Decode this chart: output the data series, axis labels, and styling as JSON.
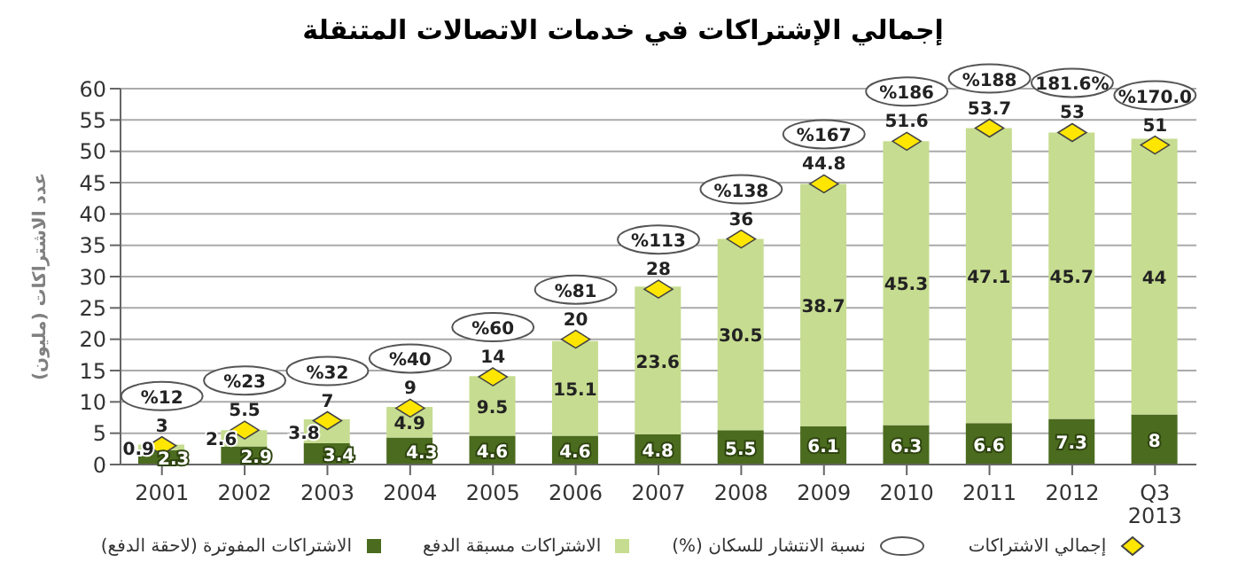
{
  "chart_data": {
    "type": "bar",
    "title": "إجمالي الإشتراكات في خدمات الاتصالات المتنقلة",
    "ylabel": "عدد الاشتراكات (مليون)",
    "categories": [
      "2001",
      "2002",
      "2003",
      "2004",
      "2005",
      "2006",
      "2007",
      "2008",
      "2009",
      "2010",
      "2011",
      "2012",
      "Q3 2013"
    ],
    "stacked": true,
    "data_labels": true,
    "grid": "y",
    "legend": "bottom",
    "ylim": [
      0,
      60
    ],
    "yticks": [
      0,
      5,
      10,
      15,
      20,
      25,
      30,
      35,
      40,
      45,
      50,
      55,
      60
    ],
    "series": [
      {
        "name": "الاشتراكات المفوترة (لاحقة الدفع)",
        "color": "#4b6b1e",
        "values": [
          2.3,
          2.9,
          3.4,
          4.3,
          4.6,
          4.6,
          4.8,
          5.5,
          6.1,
          6.3,
          6.6,
          7.3,
          8
        ]
      },
      {
        "name": "الاشتراكات مسبقة الدفع",
        "color": "#c6dc90",
        "values": [
          0.9,
          2.6,
          3.8,
          4.9,
          9.5,
          15.1,
          23.6,
          30.5,
          38.7,
          45.3,
          47.1,
          45.7,
          44
        ]
      },
      {
        "name": "إجمالي الاشتراكات",
        "type": "scatter",
        "marker": "diamond",
        "color": "#ffe600",
        "values": [
          3,
          5.5,
          7,
          9,
          14,
          20,
          28,
          36,
          44.8,
          51.6,
          53.7,
          53,
          51
        ]
      }
    ],
    "annotations": [
      "نسبة الانتشار للسكان (%)",
      {
        "text": "%12",
        "x": "2001",
        "y": 3
      },
      {
        "text": "%23",
        "x": "2002",
        "y": 5.5
      },
      {
        "text": "%32",
        "x": "2003",
        "y": 7
      },
      {
        "text": "%40",
        "x": "2004",
        "y": 9
      },
      {
        "text": "%60",
        "x": "2005",
        "y": 14
      },
      {
        "text": "%81",
        "x": "2006",
        "y": 20
      },
      {
        "text": "%113",
        "x": "2007",
        "y": 28
      },
      {
        "text": "%138",
        "x": "2008",
        "y": 36
      },
      {
        "text": "%167",
        "x": "2009",
        "y": 44.8
      },
      {
        "text": "%186",
        "x": "2010",
        "y": 51.6
      },
      {
        "text": "%188",
        "x": "2011",
        "y": 53.7
      },
      {
        "text": "181.6%",
        "x": "2012",
        "y": 53
      },
      {
        "text": "%170.0",
        "x": "Q3 2013",
        "y": 51
      }
    ]
  }
}
